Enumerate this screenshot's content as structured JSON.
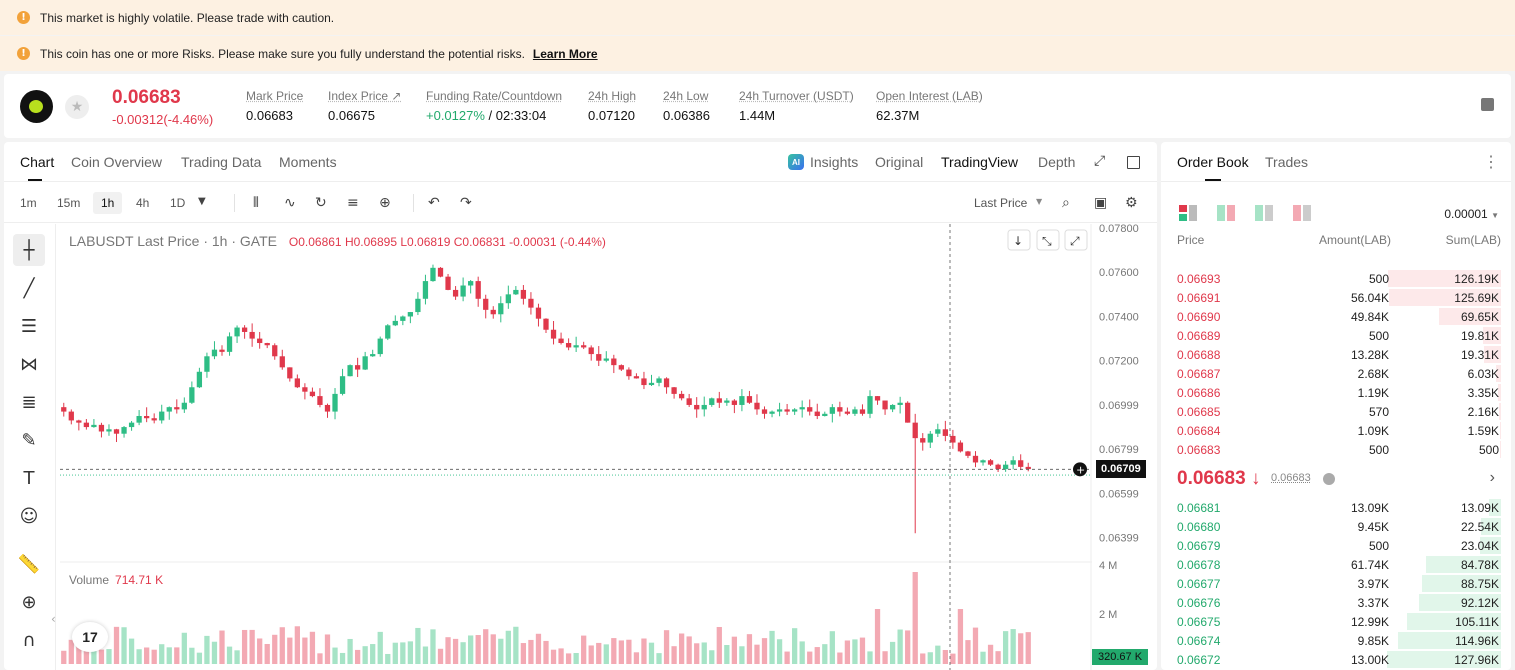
{
  "banners": {
    "volatile": "This market is highly volatile. Please trade with caution.",
    "risk": "This coin has one or more Risks. Please make sure you fully understand the potential risks.",
    "learn_more": "Learn More"
  },
  "ticker": {
    "last_price": "0.06683",
    "change": "-0.00312(-4.46%)",
    "stats": [
      {
        "label": "Mark Price",
        "value": "0.06683"
      },
      {
        "label": "Index Price ↗",
        "value": "0.06675"
      },
      {
        "label": "Funding Rate/Countdown",
        "value_green": "+0.0127%",
        "value": " / 02:33:04"
      },
      {
        "label": "24h High",
        "value": "0.07120"
      },
      {
        "label": "24h Low",
        "value": "0.06386"
      },
      {
        "label": "24h Turnover (USDT)",
        "value": "1.44M"
      },
      {
        "label": "Open Interest (LAB)",
        "value": "62.37M"
      }
    ]
  },
  "chart_tabs": {
    "chart": "Chart",
    "coin_overview": "Coin Overview",
    "trading_data": "Trading Data",
    "moments": "Moments",
    "insights": "Insights",
    "original": "Original",
    "tradingview": "TradingView",
    "depth": "Depth",
    "ai_badge": "AI"
  },
  "timeframes": [
    "1m",
    "15m",
    "1h",
    "4h",
    "1D"
  ],
  "last_price_select": "Last Price",
  "legend": {
    "symbol": "LABUSDT Last Price · 1h · GATE",
    "o": "O0.06861",
    "h": "H0.06895",
    "l": "L0.06819",
    "c": "C0.06831",
    "chg": "-0.00031 (-0.44%)"
  },
  "volume": {
    "label": "Volume",
    "value": "714.71 K",
    "badge": "320.67 K"
  },
  "price_badge": "0.06709",
  "chart_data": {
    "type": "candlestick",
    "title": "LABUSDT Last Price · 1h · GATE",
    "y_ticks": [
      "0.07800",
      "0.07600",
      "0.07400",
      "0.07200",
      "0.06999",
      "0.06799",
      "0.06599",
      "0.06399"
    ],
    "volume_ticks": [
      "4 M",
      "2 M"
    ],
    "ylim": [
      0.0629,
      0.078
    ],
    "current_price": 0.06709,
    "last_price": 0.06683,
    "candles_close": [
      0.0697,
      0.0693,
      0.0692,
      0.069,
      0.0691,
      0.0688,
      0.0689,
      0.0687,
      0.069,
      0.0692,
      0.0695,
      0.0694,
      0.0693,
      0.0697,
      0.0699,
      0.0698,
      0.0701,
      0.0708,
      0.0715,
      0.0722,
      0.0725,
      0.0724,
      0.0731,
      0.0735,
      0.0733,
      0.073,
      0.0728,
      0.0727,
      0.0722,
      0.0717,
      0.0712,
      0.0708,
      0.0706,
      0.0704,
      0.07,
      0.0697,
      0.0705,
      0.0713,
      0.0718,
      0.0716,
      0.0722,
      0.0723,
      0.073,
      0.0736,
      0.0738,
      0.074,
      0.0742,
      0.0748,
      0.0756,
      0.0762,
      0.0758,
      0.0752,
      0.0749,
      0.0754,
      0.0756,
      0.0748,
      0.0743,
      0.0741,
      0.0746,
      0.075,
      0.0752,
      0.0748,
      0.0744,
      0.0739,
      0.0734,
      0.073,
      0.0728,
      0.0726,
      0.0727,
      0.0726,
      0.0723,
      0.072,
      0.0721,
      0.0718,
      0.0716,
      0.0713,
      0.0712,
      0.0709,
      0.071,
      0.0712,
      0.0708,
      0.0705,
      0.0703,
      0.07,
      0.0698,
      0.07,
      0.0703,
      0.0701,
      0.0702,
      0.07,
      0.0704,
      0.0701,
      0.0698,
      0.0696,
      0.0697,
      0.0698,
      0.0697,
      0.0698,
      0.0699,
      0.0697,
      0.0695,
      0.0696,
      0.0699,
      0.0697,
      0.0696,
      0.0698,
      0.0696,
      0.0704,
      0.0702,
      0.0698,
      0.07,
      0.0701,
      0.0692,
      0.0685,
      0.0683,
      0.0687,
      0.0689,
      0.0686,
      0.0683,
      0.0679,
      0.0677,
      0.0674,
      0.0675,
      0.0673,
      0.0671,
      0.0673,
      0.0675,
      0.0672,
      0.0671
    ]
  },
  "orderbook": {
    "tab_orderbook": "Order Book",
    "tab_trades": "Trades",
    "precision": "0.00001",
    "headers": {
      "price": "Price",
      "amount": "Amount(LAB)",
      "sum": "Sum(LAB)"
    },
    "asks": [
      {
        "price": "0.06693",
        "amount": "500",
        "sum": "126.19K",
        "depth": 0.87
      },
      {
        "price": "0.06691",
        "amount": "56.04K",
        "sum": "125.69K",
        "depth": 0.86
      },
      {
        "price": "0.06690",
        "amount": "49.84K",
        "sum": "69.65K",
        "depth": 0.48
      },
      {
        "price": "0.06689",
        "amount": "500",
        "sum": "19.81K",
        "depth": 0.14
      },
      {
        "price": "0.06688",
        "amount": "13.28K",
        "sum": "19.31K",
        "depth": 0.13
      },
      {
        "price": "0.06687",
        "amount": "2.68K",
        "sum": "6.03K",
        "depth": 0.04
      },
      {
        "price": "0.06686",
        "amount": "1.19K",
        "sum": "3.35K",
        "depth": 0.02
      },
      {
        "price": "0.06685",
        "amount": "570",
        "sum": "2.16K",
        "depth": 0.015
      },
      {
        "price": "0.06684",
        "amount": "1.09K",
        "sum": "1.59K",
        "depth": 0.01
      },
      {
        "price": "0.06683",
        "amount": "500",
        "sum": "500",
        "depth": 0.004
      }
    ],
    "mid_price": "0.06683 ↓",
    "mid_mark": "0.06683",
    "bids": [
      {
        "price": "0.06681",
        "amount": "13.09K",
        "sum": "13.09K",
        "depth": 0.09
      },
      {
        "price": "0.06680",
        "amount": "9.45K",
        "sum": "22.54K",
        "depth": 0.15
      },
      {
        "price": "0.06679",
        "amount": "500",
        "sum": "23.04K",
        "depth": 0.16
      },
      {
        "price": "0.06678",
        "amount": "61.74K",
        "sum": "84.78K",
        "depth": 0.58
      },
      {
        "price": "0.06677",
        "amount": "3.97K",
        "sum": "88.75K",
        "depth": 0.61
      },
      {
        "price": "0.06676",
        "amount": "3.37K",
        "sum": "92.12K",
        "depth": 0.63
      },
      {
        "price": "0.06675",
        "amount": "12.99K",
        "sum": "105.11K",
        "depth": 0.72
      },
      {
        "price": "0.06674",
        "amount": "9.85K",
        "sum": "114.96K",
        "depth": 0.79
      },
      {
        "price": "0.06672",
        "amount": "13.00K",
        "sum": "127.96K",
        "depth": 0.88
      }
    ]
  },
  "colors": {
    "up": "#2ebd85",
    "down": "#e0384b",
    "volume_up": "#a6e3c6",
    "volume_down": "#f3a9b3"
  }
}
